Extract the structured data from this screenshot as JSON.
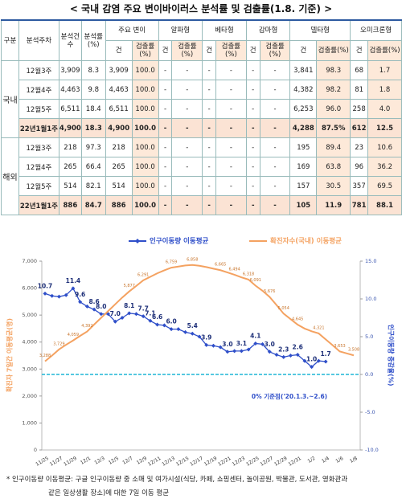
{
  "table": {
    "title": "< 국내 감염 주요 변이바이러스 분석률 및 검출률(1.8. 기준) >",
    "header_top": [
      "구분",
      "분석주차",
      "분석건수",
      "분석률(%)",
      "주요 변이",
      "알파형",
      "베타형",
      "감마형",
      "델타형",
      "오미크론형"
    ],
    "header_sub": [
      "건",
      "검출률(%)",
      "건",
      "검출률(%)",
      "건",
      "검출률(%)",
      "건",
      "검출률(%)",
      "건",
      "검출률(%)",
      "건",
      "검출률(%)"
    ],
    "groups": [
      {
        "name": "국내",
        "rows": [
          [
            "12월3주",
            "3,909",
            "8.3",
            "3,909",
            "100.0",
            "-",
            "-",
            "-",
            "-",
            "-",
            "-",
            "3,841",
            "98.3",
            "68",
            "1.7"
          ],
          [
            "12월4주",
            "4,463",
            "9.8",
            "4,463",
            "100.0",
            "-",
            "-",
            "-",
            "-",
            "-",
            "-",
            "4,382",
            "98.2",
            "81",
            "1.8"
          ],
          [
            "12월5주",
            "6,511",
            "18.4",
            "6,511",
            "100.0",
            "-",
            "-",
            "-",
            "-",
            "-",
            "-",
            "6,253",
            "96.0",
            "258",
            "4.0"
          ],
          [
            "22년1월1주",
            "4,900",
            "18.3",
            "4,900",
            "100.0",
            "-",
            "-",
            "-",
            "-",
            "-",
            "-",
            "4,288",
            "87.5%",
            "612",
            "12.5"
          ]
        ]
      },
      {
        "name": "해외",
        "rows": [
          [
            "12월3주",
            "218",
            "97.3",
            "218",
            "100.0",
            "-",
            "-",
            "-",
            "-",
            "-",
            "-",
            "195",
            "89.4",
            "23",
            "10.6"
          ],
          [
            "12월4주",
            "265",
            "66.4",
            "265",
            "100.0",
            "-",
            "-",
            "-",
            "-",
            "-",
            "-",
            "169",
            "63.8",
            "96",
            "36.2"
          ],
          [
            "12월5주",
            "514",
            "82.1",
            "514",
            "100.0",
            "-",
            "-",
            "-",
            "-",
            "-",
            "-",
            "157",
            "30.5",
            "357",
            "69.5"
          ],
          [
            "22년1월1주",
            "886",
            "84.7",
            "886",
            "100.0",
            "-",
            "-",
            "-",
            "-",
            "-",
            "-",
            "105",
            "11.9",
            "781",
            "88.1"
          ]
        ]
      }
    ]
  },
  "chart_data": {
    "type": "line",
    "categories": [
      "11/25",
      null,
      "11/27",
      null,
      "11/29",
      null,
      "12/1",
      null,
      "12/3",
      null,
      "12/5",
      null,
      "12/7",
      null,
      "12/9",
      null,
      "12/11",
      null,
      "12/13",
      null,
      "12/15",
      null,
      "12/17",
      null,
      "12/19",
      null,
      "12/21",
      null,
      "12/23",
      null,
      "12/25",
      null,
      "12/27",
      null,
      "12/29",
      null,
      "12/31",
      null,
      "1/2",
      null,
      "1/4",
      null,
      "1/6",
      null,
      "1/8"
    ],
    "series": [
      {
        "name": "인구이동량 이동평균",
        "color": "#2f4fc9",
        "axis": "y2",
        "values": [
          10.7,
          10.4,
          10.3,
          10.5,
          11.4,
          9.6,
          9.0,
          8.6,
          8.0,
          8.0,
          7.0,
          7.5,
          8.1,
          8.0,
          7.7,
          7.1,
          6.6,
          6.5,
          6.0,
          6.0,
          5.6,
          5.4,
          5.0,
          3.9,
          3.8,
          3.6,
          3.0,
          3.1,
          3.1,
          3.3,
          4.1,
          4.0,
          3.0,
          2.6,
          2.3,
          2.5,
          2.6,
          1.8,
          1.0,
          1.8,
          1.7,
          null,
          null,
          null,
          null
        ],
        "value_labels": [
          "10.7",
          null,
          null,
          null,
          "11.4",
          "9.6",
          null,
          "8.6",
          "8.0",
          null,
          "7.0",
          null,
          "8.1",
          null,
          "7.7",
          "7.1",
          "6.6",
          null,
          "6.0",
          null,
          null,
          "5.4",
          null,
          "3.9",
          null,
          null,
          "3.0",
          null,
          "3.1",
          null,
          "4.1",
          null,
          "3.0",
          null,
          "2.3",
          null,
          "2.6",
          null,
          "1.0",
          null,
          "1.7",
          null,
          null,
          null,
          null
        ]
      },
      {
        "name": "확진자수(국내) 이동평균",
        "color": "#f4a261",
        "values": [
          3288,
          3500,
          3729,
          3900,
          4059,
          4230,
          4392,
          4650,
          4900,
          5150,
          5400,
          5650,
          5877,
          6080,
          6291,
          6420,
          6550,
          6660,
          6759,
          6800,
          6840,
          6858,
          6830,
          6780,
          6720,
          6665,
          6580,
          6494,
          6400,
          6318,
          6091,
          5900,
          5676,
          5370,
          5054,
          4850,
          4645,
          4500,
          4400,
          4321,
          4100,
          3880,
          3653,
          3580,
          3508
        ],
        "value_labels": [
          "3,288",
          null,
          "3,729",
          null,
          "4,059",
          null,
          "4,392",
          null,
          null,
          null,
          null,
          null,
          "5,877",
          null,
          "6,291",
          null,
          null,
          null,
          "6,759",
          null,
          null,
          "6,858",
          null,
          null,
          null,
          "6,665",
          null,
          "6,494",
          null,
          "6,318",
          "6,091",
          null,
          "5,676",
          null,
          "5,054",
          null,
          "4,645",
          null,
          null,
          "4,321",
          null,
          null,
          "3,653",
          null,
          "3,508"
        ]
      }
    ],
    "ylabel": "확진자 7일간 이동평균(명)",
    "y2label": "인구이동량 증감율(%)",
    "ylim": [
      0,
      7000
    ],
    "yticks": [
      0,
      {
        "value": 1000,
        "label": "1,000"
      },
      {
        "value": 2000,
        "label": "2,000"
      },
      {
        "value": 3000,
        "label": "3,000"
      },
      {
        "value": 4000,
        "label": "4,000"
      },
      {
        "value": 5000,
        "label": "5,000"
      },
      {
        "value": 6000,
        "label": "6,000"
      },
      {
        "value": 7000,
        "label": "7,000"
      }
    ],
    "y2lim": [
      -10,
      15
    ],
    "y2ticks": [
      {
        "value": -10,
        "label": "-10.0"
      },
      {
        "value": -5,
        "label": "-5.0"
      },
      {
        "value": 0,
        "label": "0.0"
      },
      {
        "value": 5,
        "label": "5.0"
      },
      {
        "value": 10,
        "label": "10.0"
      },
      {
        "value": 15,
        "label": "15.0"
      }
    ],
    "reference_line": {
      "axis": "y2",
      "value": 0,
      "label": "0% 기준점('20.1.3.~2.6)",
      "color": "#1fb5d6"
    },
    "grid": false
  },
  "footnote": [
    "* 인구이동량 이동평균: 구글 인구이동량 중 소매 및 여가시설(식당, 카페, 쇼핑센터, 놀이공원, 박물관, 도서관, 영화관과",
    "같은 일상생활 장소)에 대한 7일 이동 평균"
  ]
}
